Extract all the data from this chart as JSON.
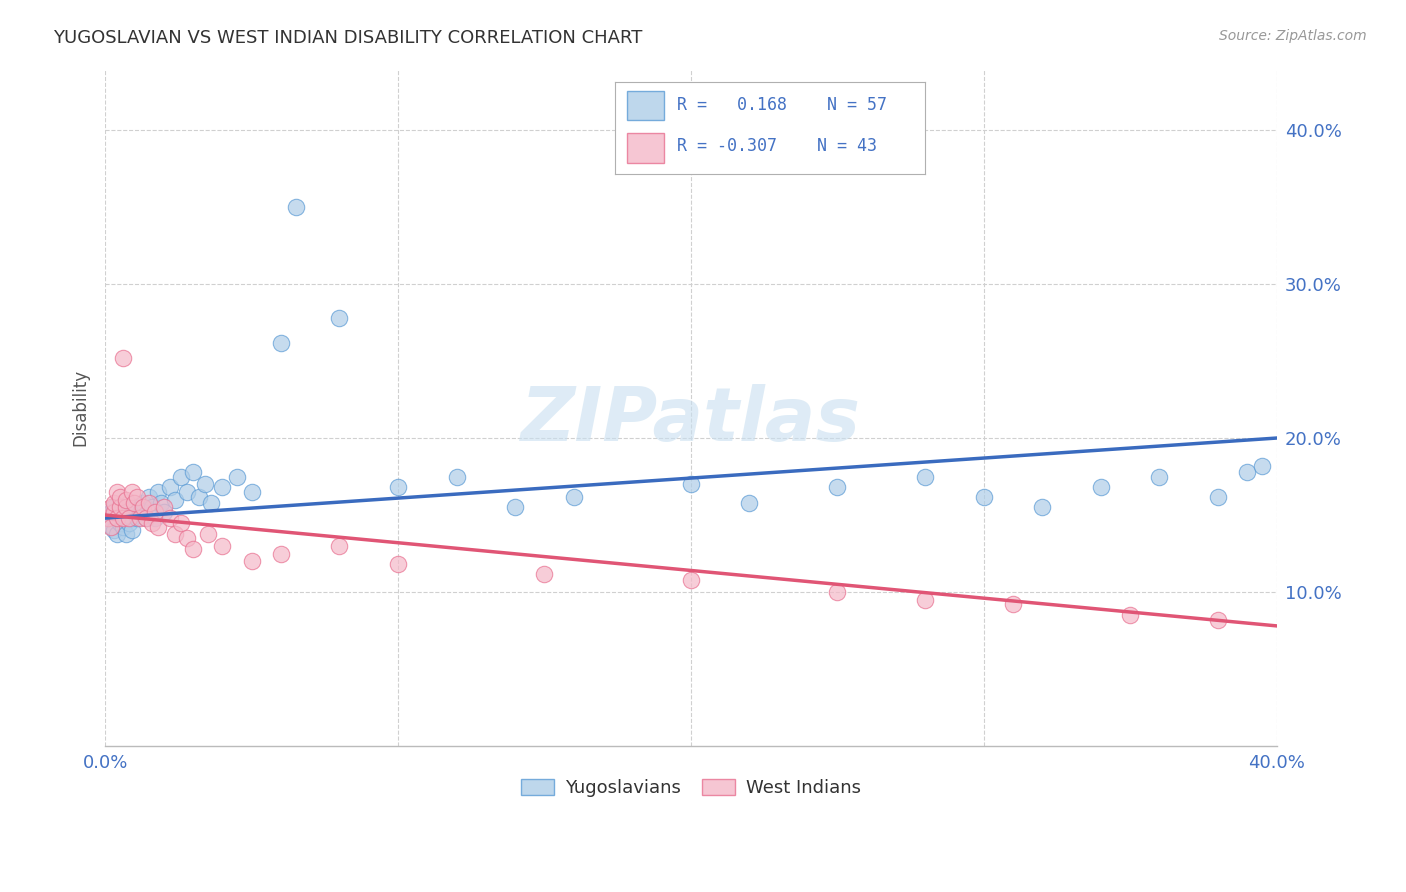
{
  "title": "YUGOSLAVIAN VS WEST INDIAN DISABILITY CORRELATION CHART",
  "source": "Source: ZipAtlas.com",
  "ylabel": "Disability",
  "xlim": [
    0.0,
    0.4
  ],
  "ylim": [
    0.0,
    0.44
  ],
  "grid_color": "#d0d0d0",
  "background_color": "#ffffff",
  "legend_r_blue": "0.168",
  "legend_n_blue": "57",
  "legend_r_pink": "-0.307",
  "legend_n_pink": "43",
  "blue_fill": "#aecde8",
  "pink_fill": "#f4b8c8",
  "blue_edge": "#5b9bd5",
  "pink_edge": "#e87090",
  "tick_color": "#4472C4",
  "blue_line_color": "#3a6bbf",
  "pink_line_color": "#e05575",
  "blue_points": [
    [
      0.001,
      0.148
    ],
    [
      0.002,
      0.143
    ],
    [
      0.002,
      0.152
    ],
    [
      0.003,
      0.14
    ],
    [
      0.003,
      0.155
    ],
    [
      0.004,
      0.148
    ],
    [
      0.004,
      0.138
    ],
    [
      0.005,
      0.152
    ],
    [
      0.005,
      0.145
    ],
    [
      0.006,
      0.155
    ],
    [
      0.006,
      0.142
    ],
    [
      0.007,
      0.148
    ],
    [
      0.007,
      0.138
    ],
    [
      0.008,
      0.152
    ],
    [
      0.008,
      0.145
    ],
    [
      0.009,
      0.148
    ],
    [
      0.009,
      0.14
    ],
    [
      0.01,
      0.155
    ],
    [
      0.011,
      0.148
    ],
    [
      0.012,
      0.152
    ],
    [
      0.013,
      0.158
    ],
    [
      0.014,
      0.148
    ],
    [
      0.015,
      0.162
    ],
    [
      0.016,
      0.155
    ],
    [
      0.017,
      0.148
    ],
    [
      0.018,
      0.165
    ],
    [
      0.019,
      0.158
    ],
    [
      0.02,
      0.152
    ],
    [
      0.022,
      0.168
    ],
    [
      0.024,
      0.16
    ],
    [
      0.026,
      0.175
    ],
    [
      0.028,
      0.165
    ],
    [
      0.03,
      0.178
    ],
    [
      0.032,
      0.162
    ],
    [
      0.034,
      0.17
    ],
    [
      0.036,
      0.158
    ],
    [
      0.04,
      0.168
    ],
    [
      0.045,
      0.175
    ],
    [
      0.05,
      0.165
    ],
    [
      0.06,
      0.262
    ],
    [
      0.065,
      0.35
    ],
    [
      0.08,
      0.278
    ],
    [
      0.1,
      0.168
    ],
    [
      0.12,
      0.175
    ],
    [
      0.14,
      0.155
    ],
    [
      0.16,
      0.162
    ],
    [
      0.2,
      0.17
    ],
    [
      0.22,
      0.158
    ],
    [
      0.25,
      0.168
    ],
    [
      0.28,
      0.175
    ],
    [
      0.3,
      0.162
    ],
    [
      0.32,
      0.155
    ],
    [
      0.34,
      0.168
    ],
    [
      0.36,
      0.175
    ],
    [
      0.38,
      0.162
    ],
    [
      0.39,
      0.178
    ],
    [
      0.395,
      0.182
    ]
  ],
  "pink_points": [
    [
      0.001,
      0.148
    ],
    [
      0.002,
      0.155
    ],
    [
      0.002,
      0.142
    ],
    [
      0.003,
      0.152
    ],
    [
      0.003,
      0.158
    ],
    [
      0.004,
      0.165
    ],
    [
      0.004,
      0.148
    ],
    [
      0.005,
      0.155
    ],
    [
      0.005,
      0.162
    ],
    [
      0.006,
      0.148
    ],
    [
      0.006,
      0.252
    ],
    [
      0.007,
      0.155
    ],
    [
      0.007,
      0.16
    ],
    [
      0.008,
      0.148
    ],
    [
      0.009,
      0.165
    ],
    [
      0.01,
      0.158
    ],
    [
      0.011,
      0.162
    ],
    [
      0.012,
      0.148
    ],
    [
      0.013,
      0.155
    ],
    [
      0.014,
      0.148
    ],
    [
      0.015,
      0.158
    ],
    [
      0.016,
      0.145
    ],
    [
      0.017,
      0.152
    ],
    [
      0.018,
      0.142
    ],
    [
      0.02,
      0.155
    ],
    [
      0.022,
      0.148
    ],
    [
      0.024,
      0.138
    ],
    [
      0.026,
      0.145
    ],
    [
      0.028,
      0.135
    ],
    [
      0.03,
      0.128
    ],
    [
      0.035,
      0.138
    ],
    [
      0.04,
      0.13
    ],
    [
      0.05,
      0.12
    ],
    [
      0.06,
      0.125
    ],
    [
      0.08,
      0.13
    ],
    [
      0.1,
      0.118
    ],
    [
      0.15,
      0.112
    ],
    [
      0.2,
      0.108
    ],
    [
      0.25,
      0.1
    ],
    [
      0.28,
      0.095
    ],
    [
      0.31,
      0.092
    ],
    [
      0.35,
      0.085
    ],
    [
      0.38,
      0.082
    ]
  ],
  "blue_line": [
    [
      0.0,
      0.148
    ],
    [
      0.4,
      0.2
    ]
  ],
  "pink_line": [
    [
      0.0,
      0.15
    ],
    [
      0.4,
      0.078
    ]
  ],
  "yticks": [
    0.1,
    0.2,
    0.3,
    0.4
  ],
  "xticks": [
    0.0,
    0.1,
    0.2,
    0.3,
    0.4
  ],
  "xtick_labels_show": [
    "0.0%",
    "",
    "",
    "",
    "40.0%"
  ]
}
